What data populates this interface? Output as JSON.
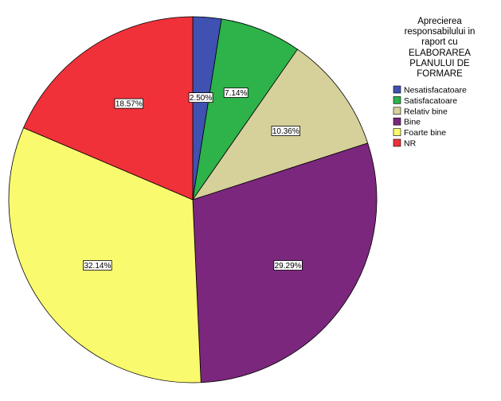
{
  "chart_data": {
    "type": "pie",
    "title_lines": [
      "Aprecierea",
      "responsabilului in",
      "raport cu",
      "ELABORAREA",
      "PLANULUI DE",
      "FORMARE"
    ],
    "slices": [
      {
        "label": "Nesatisfacatoare",
        "value": 2.5,
        "value_label": "2.50%",
        "color": "#3f51b1"
      },
      {
        "label": "Satisfacatoare",
        "value": 7.14,
        "value_label": "7.14%",
        "color": "#2db34a"
      },
      {
        "label": "Relativ bine",
        "value": 10.36,
        "value_label": "10.36%",
        "color": "#d6d09a"
      },
      {
        "label": "Bine",
        "value": 29.29,
        "value_label": "29.29%",
        "color": "#7b277d"
      },
      {
        "label": "Foarte bine",
        "value": 32.14,
        "value_label": "32.14%",
        "color": "#fafa6e"
      },
      {
        "label": "NR",
        "value": 18.57,
        "value_label": "18.57%",
        "color": "#f0313a"
      }
    ],
    "legend_position": "top-right"
  }
}
